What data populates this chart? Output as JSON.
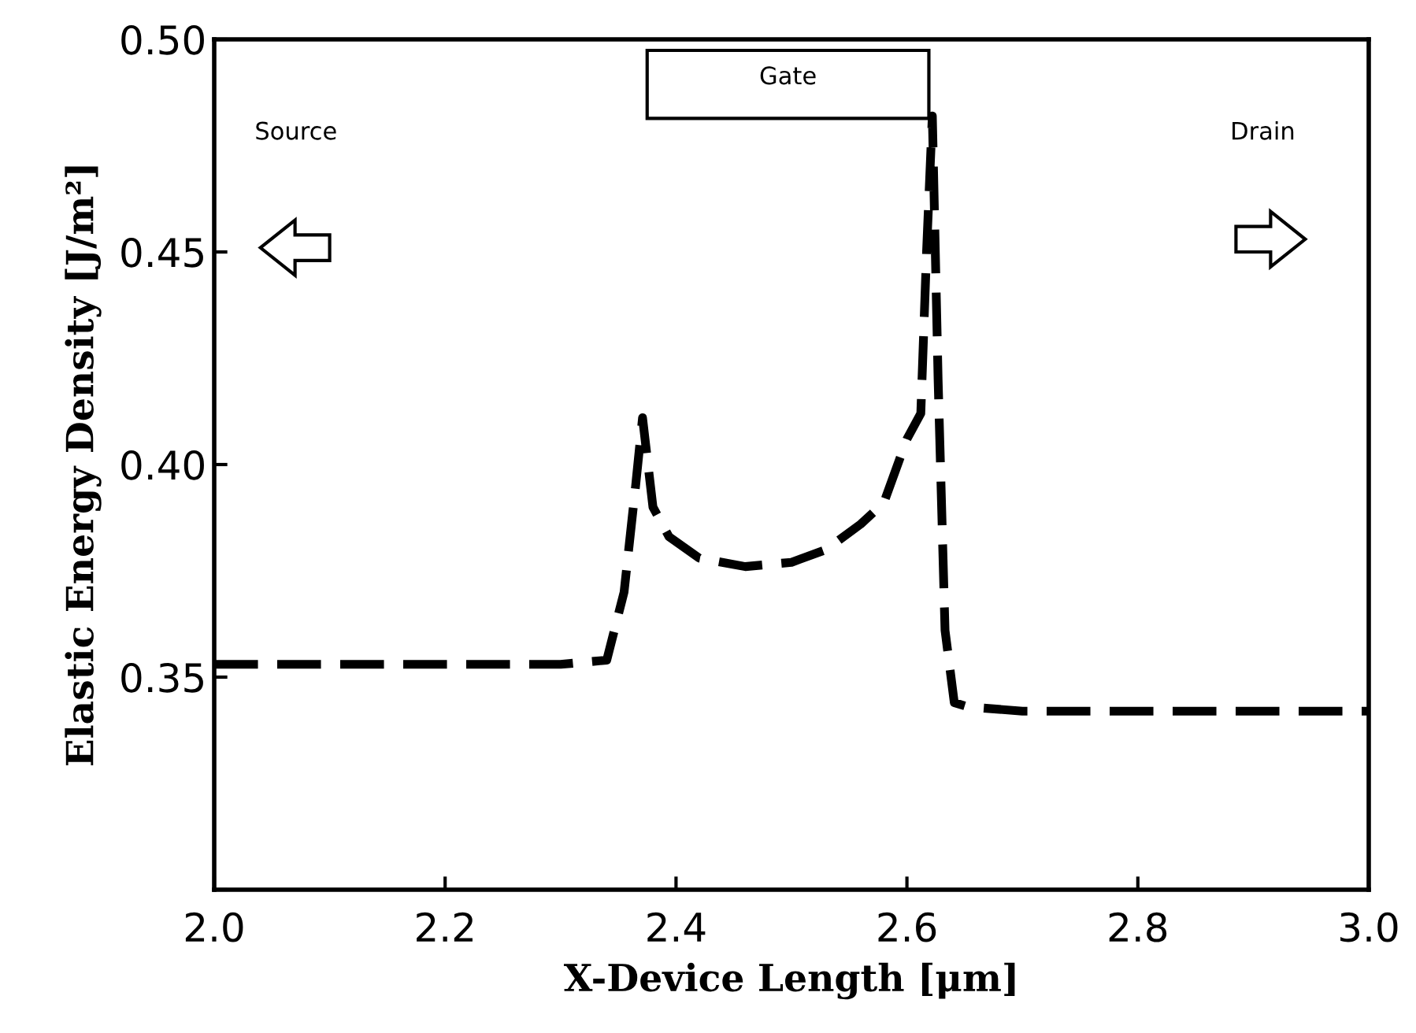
{
  "chart_data": {
    "type": "line",
    "xlabel": "X-Device Length [μm]",
    "ylabel": "Elastic Energy Density [J/m²]",
    "x": [
      2.0,
      2.1,
      2.2,
      2.3,
      2.34,
      2.355,
      2.365,
      2.371,
      2.38,
      2.394,
      2.42,
      2.46,
      2.5,
      2.53,
      2.56,
      2.58,
      2.6,
      2.612,
      2.617,
      2.622,
      2.627,
      2.633,
      2.641,
      2.653,
      2.7,
      2.8,
      2.9,
      3.0
    ],
    "series": [
      {
        "color": "#000000",
        "values": [
          0.353,
          0.353,
          0.353,
          0.353,
          0.354,
          0.37,
          0.395,
          0.411,
          0.39,
          0.383,
          0.378,
          0.376,
          0.377,
          0.38,
          0.386,
          0.391,
          0.406,
          0.412,
          0.45,
          0.482,
          0.42,
          0.361,
          0.344,
          0.343,
          0.342,
          0.342,
          0.342,
          0.342
        ]
      }
    ],
    "xlim": [
      2.0,
      3.0
    ],
    "ylim": [
      0.3,
      0.5
    ],
    "xticks": [
      {
        "value": 2.0,
        "label": "2.0"
      },
      2.2,
      2.4,
      2.6,
      2.8,
      {
        "value": 3.0,
        "label": "3.0"
      }
    ],
    "yticks": [
      {
        "value": 0.3,
        "label": null
      },
      0.35,
      {
        "value": 0.4,
        "label": "0.40"
      },
      0.45,
      {
        "value": 0.5,
        "label": "0.50"
      }
    ],
    "annotations": [
      "Source",
      "Gate",
      "Drain"
    ],
    "line_style": "dashed",
    "marker": "none",
    "grid": false,
    "legend": false
  }
}
